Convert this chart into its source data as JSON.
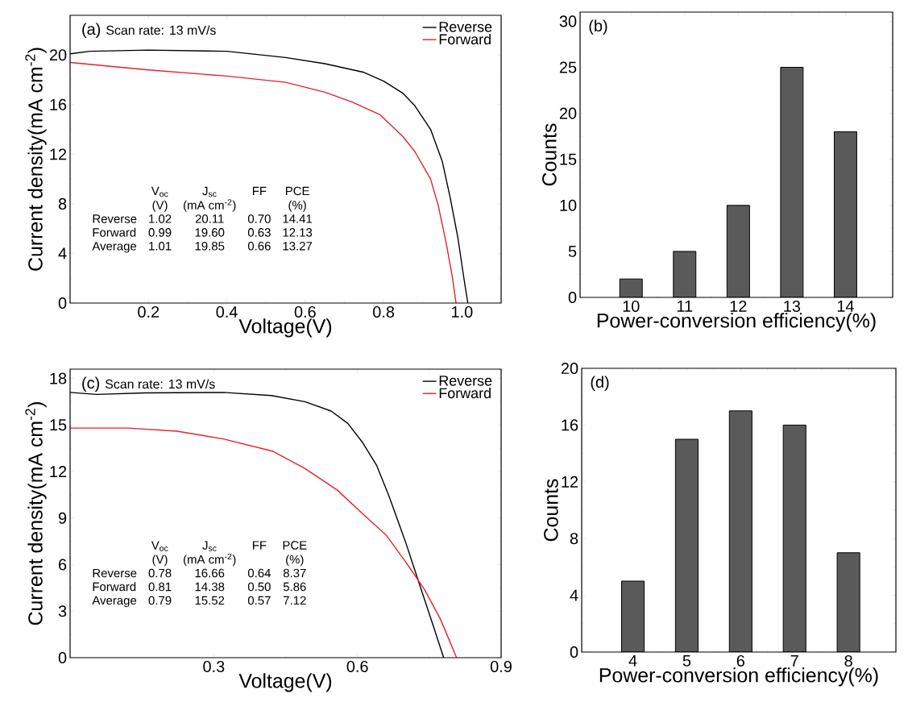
{
  "chart_data": [
    {
      "type": "line",
      "xlabel": "Voltage(V)",
      "ylabel": "Current density(mA cm$^{-2}$)",
      "xlim": [
        0,
        1.1
      ],
      "ylim": [
        0,
        23.2
      ],
      "xticks": [
        0.2,
        0.4,
        0.6,
        0.8,
        {
          "value": 1.0,
          "label": "1.0"
        }
      ],
      "yticks": [
        0,
        4,
        8,
        12,
        16,
        20
      ],
      "legend": "top right",
      "series": [
        {
          "name": "Reverse",
          "color": "#000000",
          "x": [
            0,
            0.05,
            0.2,
            0.4,
            0.55,
            0.65,
            0.75,
            0.8,
            0.85,
            0.88,
            0.92,
            0.95,
            0.97,
            0.99,
            1.005,
            1.015
          ],
          "values": [
            20.1,
            20.3,
            20.4,
            20.3,
            19.8,
            19.3,
            18.6,
            17.9,
            16.9,
            15.9,
            14.0,
            11.4,
            8.5,
            5.2,
            2.0,
            0
          ]
        },
        {
          "name": "Forward",
          "color": "#e8202a",
          "x": [
            0,
            0.2,
            0.4,
            0.55,
            0.65,
            0.72,
            0.79,
            0.85,
            0.88,
            0.92,
            0.94,
            0.96,
            0.975,
            0.985
          ],
          "values": [
            19.4,
            18.8,
            18.3,
            17.8,
            17.0,
            16.2,
            15.2,
            13.4,
            12.2,
            10.0,
            7.8,
            4.8,
            2.2,
            0
          ]
        }
      ],
      "annotations": [
        "(a)",
        "Scan rate: 13 mV/s",
        "V$_{oc}$",
        "J$_{sc}$",
        "FF",
        "PCE",
        "(V)",
        "(mA cm$^{-2}$)",
        "(%)",
        "Reverse",
        "1.02",
        "20.11",
        "0.70",
        "14.41",
        "Forward",
        "0.99",
        "19.60",
        "0.63",
        "12.13",
        "Average",
        "1.01",
        "19.85",
        "0.66",
        "13.27"
      ]
    },
    {
      "type": "bar",
      "xlabel": "Power-conversion efficiency(%)",
      "ylabel": "Counts",
      "categories": [
        "10",
        "11",
        "12",
        "13",
        "14"
      ],
      "values": [
        2,
        5,
        10,
        25,
        18
      ],
      "color": "#5a5a5a",
      "ylim": [
        0,
        31
      ],
      "yticks": [
        0,
        5,
        10,
        15,
        20,
        25,
        30
      ],
      "annotations": [
        "(b)"
      ]
    },
    {
      "type": "line",
      "xlabel": "Voltage(V)",
      "ylabel": "Current density(mA cm$^{-2}$)",
      "xlim": [
        0,
        0.9
      ],
      "ylim": [
        0,
        18.6
      ],
      "xticks": [
        0.3,
        0.6,
        0.9
      ],
      "yticks": [
        0,
        3,
        6,
        9,
        12,
        15,
        18
      ],
      "legend": "top right",
      "series": [
        {
          "name": "Reverse",
          "color": "#000000",
          "x": [
            0,
            0.055,
            0.156,
            0.32,
            0.42,
            0.49,
            0.545,
            0.58,
            0.61,
            0.64,
            0.666,
            0.7,
            0.733,
            0.76,
            0.78
          ],
          "values": [
            17.1,
            16.97,
            17.07,
            17.1,
            16.9,
            16.5,
            15.9,
            15.1,
            13.9,
            12.4,
            10.4,
            7.5,
            4.4,
            1.9,
            0
          ]
        },
        {
          "name": "Forward",
          "color": "#e8202a",
          "x": [
            0,
            0.122,
            0.223,
            0.32,
            0.424,
            0.49,
            0.558,
            0.61,
            0.66,
            0.7,
            0.74,
            0.773,
            0.807
          ],
          "values": [
            14.8,
            14.8,
            14.6,
            14.1,
            13.3,
            12.2,
            10.8,
            9.3,
            7.9,
            6.2,
            4.4,
            2.5,
            0
          ]
        }
      ],
      "annotations": [
        "(c)",
        "Scan rate: 13 mV/s",
        "V$_{oc}$",
        "J$_{sc}$",
        "FF",
        "PCE",
        "(V)",
        "(mA cm$^{-2}$)",
        "(%)",
        "Reverse",
        "0.78",
        "16.66",
        "0.64",
        "8.37",
        "Forward",
        "0.81",
        "14.38",
        "0.50",
        "5.86",
        "Average",
        "0.79",
        "15.52",
        "0.57",
        "7.12"
      ]
    },
    {
      "type": "bar",
      "xlabel": "Power-conversion efficiency(%)",
      "ylabel": "Counts",
      "categories": [
        "4",
        "5",
        "6",
        "7",
        "8"
      ],
      "values": [
        5,
        15,
        17,
        16,
        7
      ],
      "color": "#5a5a5a",
      "ylim": [
        0,
        20
      ],
      "yticks": [
        0,
        4,
        8,
        12,
        16,
        20
      ],
      "annotations": [
        "(d)"
      ]
    }
  ]
}
